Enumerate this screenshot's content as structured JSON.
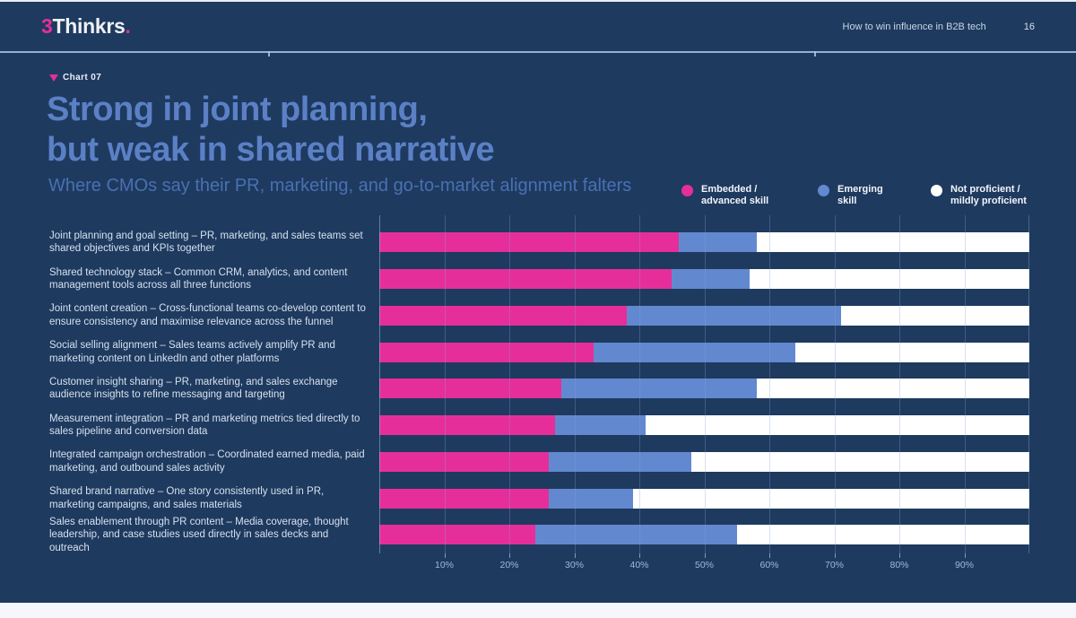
{
  "header": {
    "logo_prefix": "3",
    "logo_main": "Thinkrs",
    "logo_suffix": ".",
    "doc_title": "How to win influence in B2B tech",
    "page_number": "16"
  },
  "chart_label": "Chart 07",
  "title_line1": "Strong in joint planning,",
  "title_line2": "but weak in shared narrative",
  "subtitle": "Where CMOs say their PR, marketing, and go-to-market alignment falters",
  "colors": {
    "background": "#1e3a5f",
    "accent_pink": "#e62e9a",
    "bar_blue": "#6289cf",
    "bar_white": "#ffffff",
    "title_blue": "#5b80c6",
    "subtitle_blue": "#4a70b2"
  },
  "legend": [
    {
      "label_line1": "Embedded /",
      "label_line2": "advanced skill",
      "color": "#e62e9a"
    },
    {
      "label_line1": "Emerging",
      "label_line2": "skill",
      "color": "#6289cf"
    },
    {
      "label_line1": "Not proficient /",
      "label_line2": "mildly proficient",
      "color": "#ffffff"
    }
  ],
  "chart_data": {
    "type": "bar",
    "stacked": true,
    "orientation": "horizontal",
    "title": "Strong in joint planning, but weak in shared narrative",
    "subtitle": "Where CMOs say their PR, marketing, and go-to-market alignment falters",
    "xlim": [
      0,
      100
    ],
    "x_tick_values": [
      10,
      20,
      30,
      40,
      50,
      60,
      70,
      80,
      90
    ],
    "x_tick_labels": [
      "10%",
      "20%",
      "30%",
      "40%",
      "50%",
      "60%",
      "70%",
      "80%",
      "90%"
    ],
    "grid": true,
    "legend_position": "top-right",
    "categories": [
      "Joint planning and goal setting – PR, marketing, and sales teams set shared objectives and KPIs together",
      "Shared technology stack – Common CRM, analytics, and content management tools across all three functions",
      "Joint content creation – Cross-functional teams co-develop content to ensure consistency and maximise relevance across the funnel",
      "Social selling alignment – Sales teams actively amplify PR and marketing content on LinkedIn and other platforms",
      "Customer insight sharing – PR, marketing, and sales exchange audience insights to refine messaging and targeting",
      "Measurement integration – PR and marketing metrics tied directly to sales pipeline and conversion data",
      "Integrated campaign orchestration – Coordinated earned media, paid marketing, and outbound sales activity",
      "Shared brand narrative – One story consistently used in PR, marketing campaigns, and sales materials",
      "Sales enablement through PR content – Media coverage, thought leadership, and case studies used directly in sales decks and outreach"
    ],
    "series": [
      {
        "name": "Embedded / advanced skill",
        "color": "#e62e9a",
        "values": [
          46,
          45,
          38,
          33,
          28,
          27,
          26,
          26,
          24
        ]
      },
      {
        "name": "Emerging skill",
        "color": "#6289cf",
        "values": [
          12,
          12,
          33,
          31,
          30,
          14,
          22,
          13,
          31
        ]
      },
      {
        "name": "Not proficient / mildly proficient",
        "color": "#ffffff",
        "values": [
          42,
          43,
          29,
          36,
          42,
          59,
          52,
          61,
          45
        ]
      }
    ]
  }
}
